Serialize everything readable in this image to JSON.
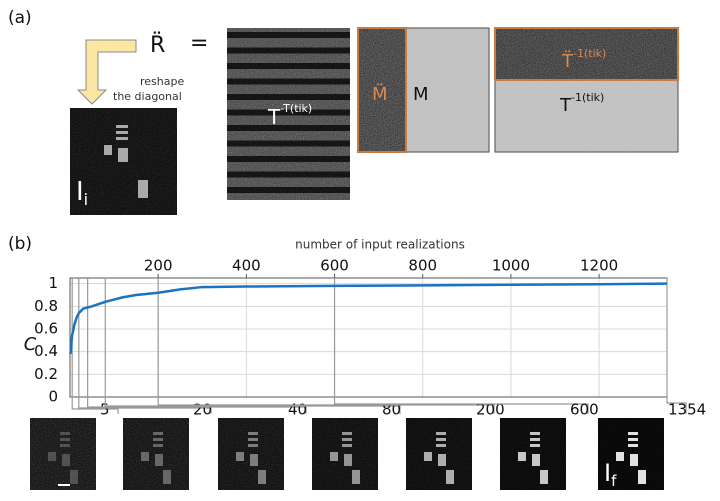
{
  "panel_a": {
    "label": "(a)",
    "lhs": "R̈",
    "equals": "=",
    "arrow_text": [
      "reshape",
      "the diagonal"
    ],
    "image_label": {
      "base": "I",
      "sub": "i"
    },
    "t_label": {
      "base": "T",
      "sup": "-T(tik)"
    },
    "m_labels": [
      "M̈",
      "M"
    ],
    "t_inv_labels": [
      {
        "base": "T̈",
        "sup": "-1(tik)"
      },
      {
        "base": "T",
        "sup": "-1(tik)"
      }
    ]
  },
  "chart_data": {
    "type": "line",
    "panel_label": "(b)",
    "xlabel": "number of input realizations",
    "ylabel": "C",
    "x": [
      1,
      2,
      3,
      5,
      8,
      10,
      15,
      20,
      30,
      40,
      50,
      65,
      80,
      100,
      120,
      150,
      200,
      250,
      300,
      400,
      600,
      800,
      1000,
      1200,
      1354
    ],
    "values": [
      0.38,
      0.42,
      0.48,
      0.55,
      0.6,
      0.64,
      0.7,
      0.74,
      0.78,
      0.79,
      0.8,
      0.82,
      0.84,
      0.86,
      0.88,
      0.9,
      0.92,
      0.95,
      0.97,
      0.975,
      0.98,
      0.985,
      0.99,
      0.995,
      1.0
    ],
    "color": "#1a73c0",
    "xlim": [
      0,
      1354
    ],
    "xticks": [
      200,
      400,
      600,
      800,
      1000,
      1200
    ],
    "ylim": [
      0,
      1.05
    ],
    "yticks": [
      0,
      0.2,
      0.4,
      0.6,
      0.8,
      1
    ],
    "grid": true,
    "snapshots": [
      5,
      20,
      40,
      80,
      200,
      600,
      1354
    ],
    "final_label": {
      "base": "I",
      "sub": "f"
    }
  }
}
